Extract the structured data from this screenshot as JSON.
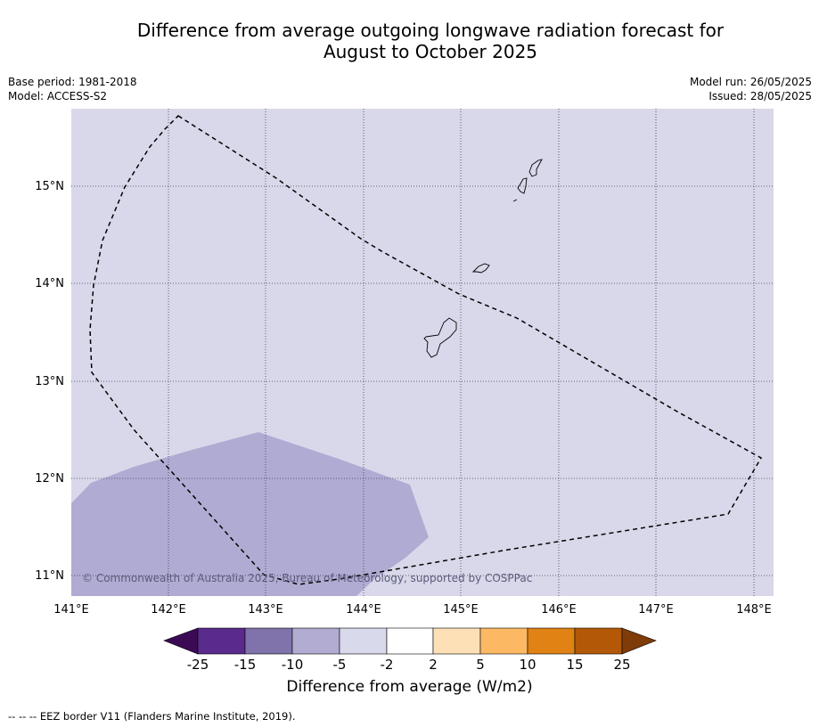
{
  "title": {
    "line1": "Difference from average outgoing longwave radiation forecast for",
    "line2": "August to October 2025"
  },
  "meta": {
    "base_period": "Base period: 1981-2018",
    "model": "Model: ACCESS-S2",
    "model_run": "Model run: 26/05/2025",
    "issued": "Issued: 28/05/2025"
  },
  "map": {
    "background_color": "#d8d8ea",
    "anomaly_color": "#b0abd2",
    "lat_labels": [
      "15°N",
      "14°N",
      "13°N",
      "12°N",
      "11°N"
    ],
    "lon_labels": [
      "141°E",
      "142°E",
      "143°E",
      "144°E",
      "145°E",
      "146°E",
      "147°E",
      "148°E"
    ],
    "copyright": "© Commonwealth of Australia 2025, Bureau of Meteorology, supported by COSPPac"
  },
  "colorbar": {
    "tick_labels": [
      "-25",
      "-15",
      "-10",
      "-5",
      "-2",
      "2",
      "5",
      "10",
      "15",
      "25"
    ],
    "colors": [
      "#3b0a55",
      "#5a2a8c",
      "#8073ac",
      "#b2abd2",
      "#d8daeb",
      "#ffffff",
      "#fee0b6",
      "#fdb863",
      "#e08214",
      "#b35806",
      "#7f3b08"
    ],
    "label": "Difference from average (W/m2)"
  },
  "footnote": "--  --  -- EEZ border V11 (Flanders Marine Institute, 2019)."
}
